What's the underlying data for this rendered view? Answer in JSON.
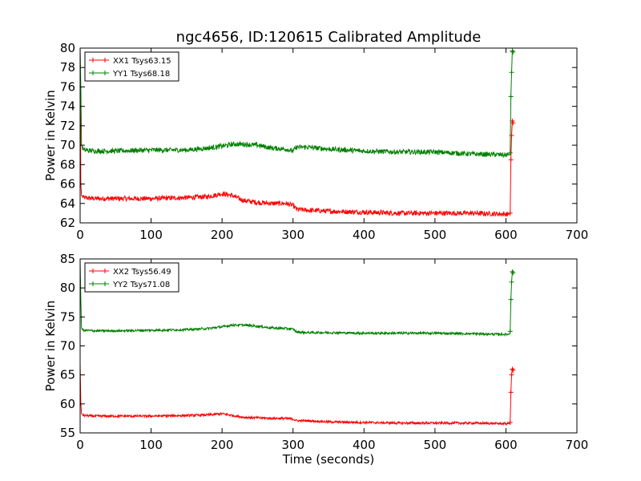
{
  "figure": {
    "title": "ngc4656, ID:120615 Calibrated Amplitude",
    "xlabel": "Time (seconds)"
  },
  "colors": {
    "red": "#ff0000",
    "green": "#008000",
    "axes": "#000000"
  },
  "chart_data": [
    {
      "type": "line",
      "title": "ngc4656, ID:120615 Calibrated Amplitude",
      "xlabel": "",
      "ylabel": "Power in Kelvin",
      "xlim": [
        0,
        700
      ],
      "ylim": [
        62,
        80
      ],
      "xticks": [
        0,
        100,
        200,
        300,
        400,
        500,
        600,
        700
      ],
      "yticks": [
        62,
        64,
        66,
        68,
        70,
        72,
        74,
        76,
        78,
        80
      ],
      "grid": false,
      "legend_position": "top-left",
      "series": [
        {
          "name": "XX1 Tsys63.15",
          "color": "#ff0000",
          "x": [
            0,
            1,
            2,
            5,
            20,
            50,
            100,
            150,
            180,
            200,
            215,
            230,
            250,
            270,
            290,
            300,
            305,
            320,
            350,
            400,
            450,
            500,
            550,
            600,
            605,
            606,
            607,
            608,
            609,
            610
          ],
          "y": [
            80,
            66,
            64.8,
            64.6,
            64.5,
            64.5,
            64.5,
            64.6,
            64.7,
            65.0,
            64.8,
            64.3,
            64.1,
            64.0,
            64.0,
            63.8,
            63.4,
            63.3,
            63.2,
            63.1,
            63.0,
            63.0,
            63.0,
            62.9,
            62.9,
            63.0,
            68.5,
            71.0,
            72.5,
            72.3
          ],
          "noise": 0.25
        },
        {
          "name": "YY1 Tsys68.18",
          "color": "#008000",
          "x": [
            0,
            1,
            2,
            5,
            20,
            50,
            100,
            150,
            180,
            200,
            215,
            230,
            250,
            270,
            290,
            300,
            305,
            320,
            350,
            400,
            450,
            500,
            550,
            600,
            605,
            606,
            607,
            608,
            609,
            610
          ],
          "y": [
            80,
            76,
            70.0,
            69.5,
            69.4,
            69.4,
            69.5,
            69.5,
            69.7,
            69.9,
            70.1,
            70.1,
            70.0,
            69.7,
            69.6,
            69.4,
            69.8,
            69.8,
            69.6,
            69.4,
            69.3,
            69.3,
            69.1,
            69.0,
            69.0,
            69.2,
            75.0,
            77.5,
            79.7,
            79.6
          ],
          "noise": 0.25
        }
      ]
    },
    {
      "type": "line",
      "title": "",
      "xlabel": "Time (seconds)",
      "ylabel": "Power in Kelvin",
      "xlim": [
        0,
        700
      ],
      "ylim": [
        55,
        85
      ],
      "xticks": [
        0,
        100,
        200,
        300,
        400,
        500,
        600,
        700
      ],
      "yticks": [
        55,
        60,
        65,
        70,
        75,
        80,
        85
      ],
      "grid": false,
      "legend_position": "top-left",
      "series": [
        {
          "name": "XX2 Tsys56.49",
          "color": "#ff0000",
          "x": [
            0,
            1,
            2,
            5,
            20,
            50,
            100,
            150,
            180,
            200,
            215,
            230,
            250,
            270,
            290,
            300,
            305,
            320,
            350,
            400,
            450,
            500,
            550,
            600,
            605,
            606,
            607,
            608,
            609,
            610
          ],
          "y": [
            67,
            60,
            58.3,
            58.0,
            57.9,
            57.9,
            57.9,
            58.0,
            58.1,
            58.3,
            58.0,
            57.7,
            57.6,
            57.5,
            57.5,
            57.4,
            57.1,
            57.1,
            56.9,
            56.8,
            56.7,
            56.7,
            56.7,
            56.6,
            56.6,
            56.8,
            62.0,
            65.0,
            66.0,
            65.8
          ],
          "noise": 0.2
        },
        {
          "name": "YY2 Tsys71.08",
          "color": "#008000",
          "x": [
            0,
            1,
            2,
            5,
            20,
            50,
            100,
            150,
            180,
            200,
            215,
            230,
            250,
            270,
            290,
            300,
            305,
            320,
            350,
            400,
            450,
            500,
            550,
            600,
            605,
            606,
            607,
            608,
            609,
            610
          ],
          "y": [
            85,
            78,
            73.0,
            72.7,
            72.6,
            72.6,
            72.7,
            72.8,
            73.0,
            73.3,
            73.6,
            73.6,
            73.4,
            73.1,
            73.0,
            72.9,
            72.4,
            72.3,
            72.3,
            72.2,
            72.2,
            72.2,
            72.1,
            72.0,
            72.0,
            72.5,
            78.0,
            81.0,
            82.8,
            82.6
          ],
          "noise": 0.2
        }
      ]
    }
  ]
}
